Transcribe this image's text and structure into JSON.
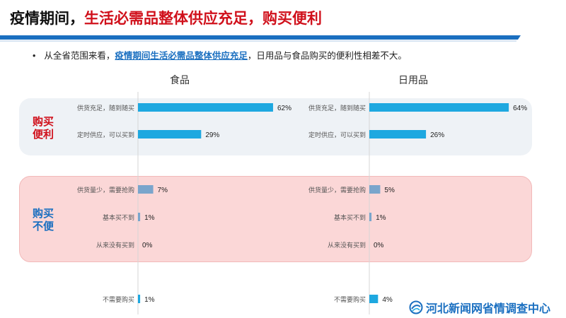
{
  "title": {
    "main": "疫情期间，",
    "highlight": "生活必需品整体供应充足，购买便利"
  },
  "bullet": {
    "dot": "•",
    "prefix": "从全省范围来看，",
    "highlight": "疫情期间生活必需品整体供应充足",
    "suffix": "，日用品与食品购买的便利性相差不大。"
  },
  "zones": {
    "convenient": "购买\n便利",
    "inconvenient": "购买\n不便"
  },
  "colors": {
    "bar_primary": "#1ea8e0",
    "bar_secondary": "#7aa5cc",
    "convenient_label": "#d0101b",
    "inconvenient_label": "#1a6fc0",
    "header_bar": "#1a6fc0"
  },
  "chart_data": [
    {
      "type": "bar",
      "title": "食品",
      "categories": [
        "供货充足，随到随买",
        "定时供应，可以买到",
        "供货量少，需要抢购",
        "基本买不到",
        "从来没有买到",
        "不需要购买"
      ],
      "values": [
        62,
        29,
        7,
        1,
        0,
        1
      ],
      "value_labels": [
        "62%",
        "29%",
        "7%",
        "1%",
        "0%",
        "1%"
      ],
      "unit": "%"
    },
    {
      "type": "bar",
      "title": "日用品",
      "categories": [
        "供货充足，随到随买",
        "定时供应，可以买到",
        "供货量少，需要抢购",
        "基本买不到",
        "从来没有买到",
        "不需要购买"
      ],
      "values": [
        64,
        26,
        5,
        1,
        0,
        4
      ],
      "value_labels": [
        "64%",
        "26%",
        "5%",
        "1%",
        "0%",
        "4%"
      ],
      "unit": "%"
    }
  ],
  "footer": {
    "logo_text": "河北新闻网省情调查中心",
    "logo_icon": "globe-logo-icon"
  }
}
